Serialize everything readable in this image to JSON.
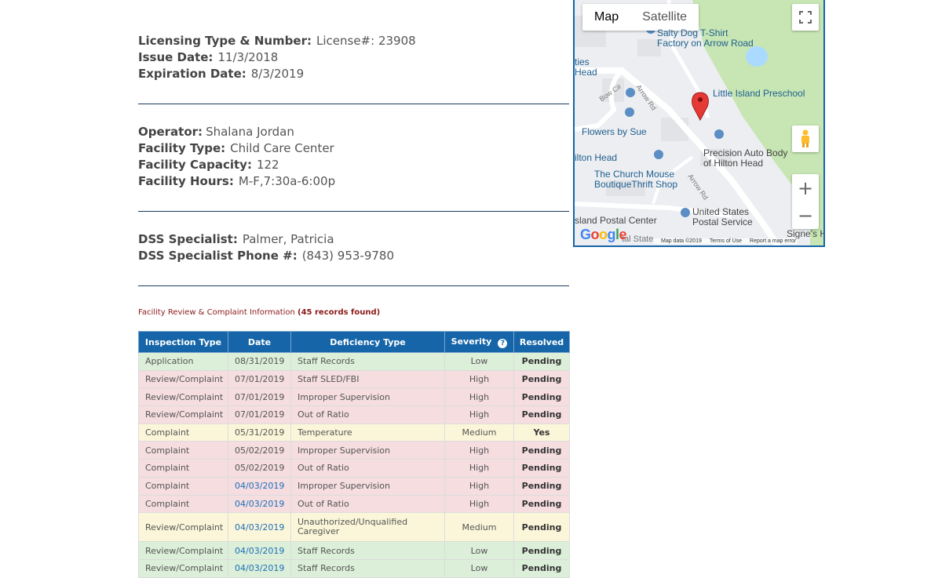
{
  "license": {
    "type_label": "Licensing Type & Number:",
    "type_value": "License#: 23908",
    "issue_label": "Issue Date:",
    "issue_value": "11/3/2018",
    "exp_label": "Expiration Date:",
    "exp_value": "8/3/2019"
  },
  "facility": {
    "operator_label": "Operator:",
    "operator_value": "Shalana Jordan",
    "type_label": "Facility Type:",
    "type_value": "Child Care Center",
    "capacity_label": "Facility Capacity:",
    "capacity_value": "122",
    "hours_label": "Facility Hours:",
    "hours_value": "M-F,7:30a-6:00p"
  },
  "dss": {
    "specialist_label": "DSS Specialist:",
    "specialist_value": "Palmer, Patricia",
    "phone_label": "DSS Specialist Phone #:",
    "phone_value": "(843) 953-9780"
  },
  "records": {
    "title": "Facility Review & Complaint Information",
    "count": "(45 records found)"
  },
  "table": {
    "headers": {
      "inspection_type": "Inspection Type",
      "date": "Date",
      "deficiency_type": "Deficiency Type",
      "severity": "Severity",
      "resolved": "Resolved"
    },
    "rows": [
      {
        "inspection_type": "Application",
        "date": "08/31/2019",
        "deficiency_type": "Staff Records",
        "severity": "Low",
        "resolved": "Pending"
      },
      {
        "inspection_type": "Review/Complaint",
        "date": "07/01/2019",
        "deficiency_type": "Staff SLED/FBI",
        "severity": "High",
        "resolved": "Pending"
      },
      {
        "inspection_type": "Review/Complaint",
        "date": "07/01/2019",
        "deficiency_type": "Improper Supervision",
        "severity": "High",
        "resolved": "Pending"
      },
      {
        "inspection_type": "Review/Complaint",
        "date": "07/01/2019",
        "deficiency_type": "Out of Ratio",
        "severity": "High",
        "resolved": "Pending"
      },
      {
        "inspection_type": "Complaint",
        "date": "05/31/2019",
        "deficiency_type": "Temperature",
        "severity": "Medium",
        "resolved": "Yes"
      },
      {
        "inspection_type": "Complaint",
        "date": "05/02/2019",
        "deficiency_type": "Improper Supervision",
        "severity": "High",
        "resolved": "Pending"
      },
      {
        "inspection_type": "Complaint",
        "date": "05/02/2019",
        "deficiency_type": "Out of Ratio",
        "severity": "High",
        "resolved": "Pending"
      },
      {
        "inspection_type": "Complaint",
        "date": "04/03/2019",
        "deficiency_type": "Improper Supervision",
        "severity": "High",
        "resolved": "Pending"
      },
      {
        "inspection_type": "Complaint",
        "date": "04/03/2019",
        "deficiency_type": "Out of Ratio",
        "severity": "High",
        "resolved": "Pending"
      },
      {
        "inspection_type": "Review/Complaint",
        "date": "04/03/2019",
        "deficiency_type": "Unauthorized/Unqualified Caregiver",
        "severity": "Medium",
        "resolved": "Pending"
      },
      {
        "inspection_type": "Review/Complaint",
        "date": "04/03/2019",
        "deficiency_type": "Staff Records",
        "severity": "Low",
        "resolved": "Pending"
      },
      {
        "inspection_type": "Review/Complaint",
        "date": "04/03/2019",
        "deficiency_type": "Staff Records",
        "severity": "Low",
        "resolved": "Pending"
      }
    ]
  },
  "map": {
    "map_btn": "Map",
    "satellite_btn": "Satellite",
    "fullscreen_icon": "fullscreen-icon",
    "pegman_icon": "pegman-icon",
    "zoom_in": "+",
    "zoom_out": "−",
    "labels": {
      "salty_dog": "Salty Dog T-Shirt\nFactory on Arrow Road",
      "ties_head": "ties\nHead",
      "little_island": "Little Island Preschool",
      "flowers": "Flowers by Sue",
      "ilton_head": "ilton Head",
      "precision": "Precision Auto Body\nof Hilton Head",
      "church_mouse": "The Church Mouse\nBoutiqueThrift Shop",
      "usps": "United States\nPostal Service",
      "island_postal": "sland Postal Center",
      "signes": "Signe's He",
      "bow_cir": "Bow Cir",
      "arrow_rd_1": "Arrow Rd",
      "arrow_rd_2": "Arrow Rd",
      "state": "tal State"
    },
    "google": "Google",
    "map_data": "Map data ©2019",
    "terms": "Terms of Use",
    "report": "Report a map error"
  },
  "colors": {
    "header_blue": "#1565a8",
    "row_low": "#dcefd9",
    "row_high": "#f5dde0",
    "row_medium": "#fbf6d9",
    "records_red": "#8b1a1a"
  }
}
